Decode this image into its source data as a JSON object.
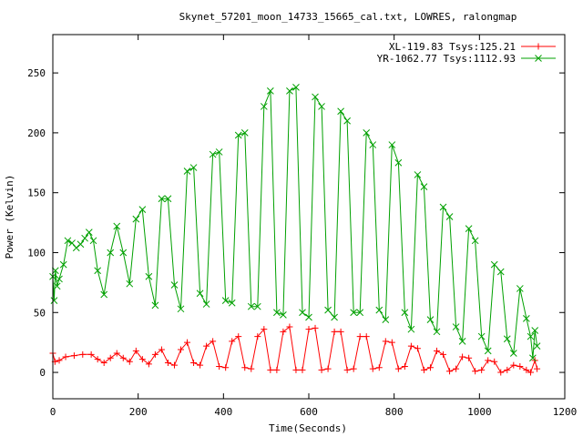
{
  "chart_data": {
    "type": "line",
    "title": "Skynet_57201_moon_14733_15665_cal.txt, LOWRES, ralongmap",
    "xlabel": "Time(Seconds)",
    "ylabel": "Power (Kelvin)",
    "xlim": [
      0,
      1200
    ],
    "ylim": [
      -22,
      282
    ],
    "xticks": [
      0,
      200,
      400,
      600,
      800,
      1000,
      1200
    ],
    "yticks": [
      0,
      50,
      100,
      150,
      200,
      250
    ],
    "xtick_labels": [
      "0",
      "200",
      "400",
      "600",
      "800",
      "1000",
      "1200"
    ],
    "ytick_labels": [
      "0",
      "50",
      "100",
      "150",
      "200",
      "250"
    ],
    "legend_position": "top-right",
    "grid": false,
    "series": [
      {
        "name": "XL-119.83 Tsys:125.21",
        "color": "#ff0000",
        "marker": "plus",
        "x": [
          0,
          5,
          15,
          30,
          50,
          70,
          90,
          105,
          120,
          135,
          150,
          165,
          180,
          195,
          210,
          225,
          240,
          255,
          270,
          285,
          300,
          315,
          330,
          345,
          360,
          375,
          390,
          405,
          420,
          435,
          450,
          465,
          480,
          495,
          510,
          525,
          540,
          555,
          570,
          585,
          600,
          615,
          630,
          645,
          660,
          675,
          690,
          705,
          720,
          735,
          750,
          765,
          780,
          795,
          810,
          825,
          840,
          855,
          870,
          885,
          900,
          915,
          930,
          945,
          960,
          975,
          990,
          1005,
          1020,
          1035,
          1050,
          1065,
          1080,
          1095,
          1110,
          1120,
          1130,
          1135
        ],
        "values": [
          16,
          9,
          10,
          13,
          14,
          15,
          15,
          11,
          8,
          12,
          16,
          12,
          9,
          18,
          11,
          7,
          15,
          19,
          8,
          6,
          19,
          25,
          8,
          6,
          22,
          26,
          5,
          4,
          26,
          30,
          4,
          3,
          30,
          36,
          2,
          2,
          34,
          38,
          2,
          2,
          36,
          37,
          2,
          3,
          34,
          34,
          2,
          3,
          30,
          30,
          3,
          4,
          26,
          25,
          3,
          5,
          22,
          20,
          2,
          4,
          18,
          15,
          1,
          3,
          13,
          12,
          1,
          2,
          10,
          9,
          0,
          2,
          6,
          5,
          2,
          0,
          10,
          3
        ]
      },
      {
        "name": "YR-1062.77 Tsys:1112.93",
        "color": "#00a000",
        "marker": "cross",
        "x": [
          0,
          3,
          6,
          10,
          15,
          25,
          35,
          45,
          55,
          65,
          75,
          85,
          95,
          105,
          120,
          135,
          150,
          165,
          180,
          195,
          210,
          225,
          240,
          255,
          270,
          285,
          300,
          315,
          330,
          345,
          360,
          375,
          390,
          405,
          420,
          435,
          450,
          465,
          480,
          495,
          510,
          525,
          540,
          555,
          570,
          585,
          600,
          615,
          630,
          645,
          660,
          675,
          690,
          705,
          720,
          735,
          750,
          765,
          780,
          795,
          810,
          825,
          840,
          855,
          870,
          885,
          900,
          915,
          930,
          945,
          960,
          975,
          990,
          1005,
          1020,
          1035,
          1050,
          1065,
          1080,
          1095,
          1110,
          1120,
          1125,
          1130,
          1135
        ],
        "values": [
          80,
          60,
          85,
          72,
          78,
          90,
          110,
          108,
          104,
          107,
          112,
          117,
          110,
          85,
          65,
          100,
          122,
          100,
          74,
          128,
          136,
          80,
          56,
          145,
          145,
          73,
          53,
          168,
          171,
          66,
          57,
          182,
          184,
          60,
          58,
          198,
          200,
          55,
          55,
          222,
          235,
          50,
          48,
          235,
          238,
          50,
          46,
          230,
          222,
          52,
          46,
          218,
          210,
          50,
          50,
          200,
          190,
          52,
          44,
          190,
          175,
          50,
          36,
          165,
          155,
          44,
          34,
          138,
          130,
          38,
          26,
          120,
          110,
          30,
          18,
          90,
          84,
          28,
          16,
          70,
          45,
          30,
          12,
          35,
          22
        ]
      }
    ]
  }
}
